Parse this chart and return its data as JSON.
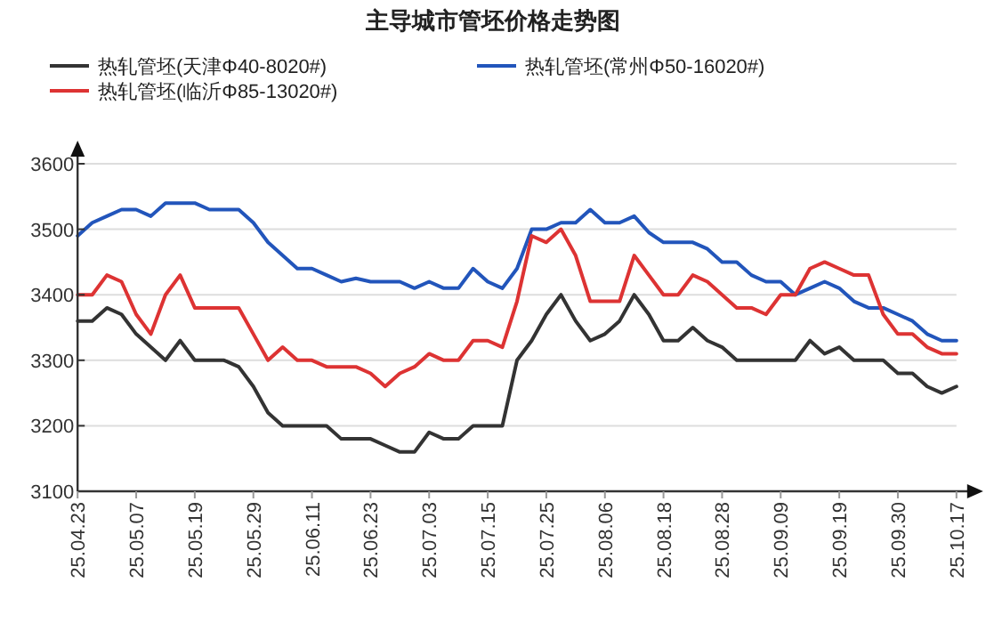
{
  "chart_data": {
    "type": "line",
    "title": "主导城市管坯价格走势图",
    "categories": [
      "25.04.23",
      null,
      null,
      null,
      "25.05.07",
      null,
      null,
      null,
      "25.05.19",
      null,
      null,
      null,
      "25.05.29",
      null,
      null,
      null,
      "25.06.11",
      null,
      null,
      null,
      "25.06.23",
      null,
      null,
      null,
      "25.07.03",
      null,
      null,
      null,
      "25.07.15",
      null,
      null,
      null,
      "25.07.25",
      null,
      null,
      null,
      "25.08.06",
      null,
      null,
      null,
      "25.08.18",
      null,
      null,
      null,
      "25.08.28",
      null,
      null,
      null,
      "25.09.09",
      null,
      null,
      null,
      "25.09.19",
      null,
      null,
      null,
      "25.09.30",
      null,
      null,
      null,
      "25.10.17"
    ],
    "series": [
      {
        "name": "热轧管坯(天津Φ40-8020#)",
        "color": "#333333",
        "values": [
          3360,
          3360,
          3380,
          3370,
          3340,
          3320,
          3300,
          3330,
          3300,
          3300,
          3300,
          3290,
          3260,
          3220,
          3200,
          3200,
          3200,
          3200,
          3180,
          3180,
          3180,
          3170,
          3160,
          3160,
          3190,
          3180,
          3180,
          3200,
          3200,
          3200,
          3300,
          3330,
          3370,
          3400,
          3360,
          3330,
          3340,
          3360,
          3400,
          3370,
          3330,
          3330,
          3350,
          3330,
          3320,
          3300,
          3300,
          3300,
          3300,
          3300,
          3330,
          3310,
          3320,
          3300,
          3300,
          3300,
          3280,
          3280,
          3260,
          3250,
          3260
        ]
      },
      {
        "name": "热轧管坯(常州Φ50-16020#)",
        "color": "#2255bb",
        "values": [
          3490,
          3510,
          3520,
          3530,
          3530,
          3520,
          3540,
          3540,
          3540,
          3530,
          3530,
          3530,
          3510,
          3480,
          3460,
          3440,
          3440,
          3430,
          3420,
          3425,
          3420,
          3420,
          3420,
          3410,
          3420,
          3410,
          3410,
          3440,
          3420,
          3410,
          3440,
          3500,
          3500,
          3510,
          3510,
          3530,
          3510,
          3510,
          3520,
          3495,
          3480,
          3480,
          3480,
          3470,
          3450,
          3450,
          3430,
          3420,
          3420,
          3400,
          3410,
          3420,
          3410,
          3390,
          3380,
          3380,
          3370,
          3360,
          3340,
          3330,
          3330
        ]
      },
      {
        "name": "热轧管坯(临沂Φ85-13020#)",
        "color": "#dd3333",
        "values": [
          3400,
          3400,
          3430,
          3420,
          3370,
          3340,
          3400,
          3430,
          3380,
          3380,
          3380,
          3380,
          3340,
          3300,
          3320,
          3300,
          3300,
          3290,
          3290,
          3290,
          3280,
          3260,
          3280,
          3290,
          3310,
          3300,
          3300,
          3330,
          3330,
          3320,
          3390,
          3490,
          3480,
          3500,
          3460,
          3390,
          3390,
          3390,
          3460,
          3430,
          3400,
          3400,
          3430,
          3420,
          3400,
          3380,
          3380,
          3370,
          3400,
          3400,
          3440,
          3450,
          3440,
          3430,
          3430,
          3370,
          3340,
          3340,
          3320,
          3310,
          3310
        ]
      }
    ],
    "ylim": [
      3100,
      3600
    ],
    "yticks": [
      3100,
      3200,
      3300,
      3400,
      3500,
      3600
    ],
    "grid": "y",
    "legend": "top",
    "marker": "none",
    "line_style": "solid"
  }
}
